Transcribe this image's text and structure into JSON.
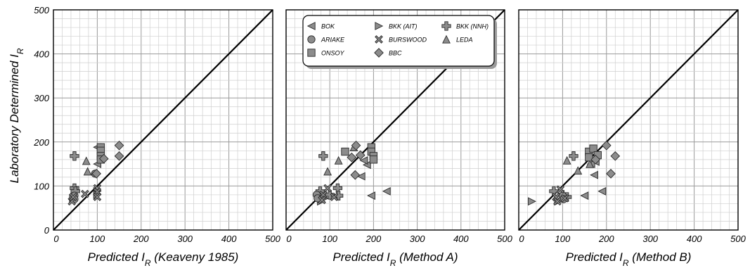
{
  "chart_data": [
    {
      "type": "scatter",
      "xlabel": "Predicted I_R (Keaveny 1985)",
      "ylabel": "Laboratory Determined I_R",
      "xlim": [
        0,
        500
      ],
      "ylim": [
        0,
        500
      ],
      "xticks": [
        "0",
        "100",
        "200",
        "300",
        "400",
        "500"
      ],
      "yticks": [
        "0",
        "100",
        "200",
        "300",
        "400",
        "500"
      ],
      "grid": true,
      "reference_line": "1:1",
      "series": [
        {
          "name": "BOK",
          "marker": "triangle-left",
          "points": [
            [
              100,
              150
            ],
            [
              100,
              188
            ]
          ]
        },
        {
          "name": "BKK (AIT)",
          "marker": "triangle-right",
          "points": [
            [
              45,
              72
            ],
            [
              100,
              80
            ],
            [
              100,
              88
            ]
          ]
        },
        {
          "name": "BKK (NNH)",
          "marker": "plus",
          "points": [
            [
              48,
              168
            ],
            [
              48,
              95
            ],
            [
              50,
              88
            ]
          ]
        },
        {
          "name": "ARIAKE",
          "marker": "circle",
          "points": [
            [
              48,
              78
            ],
            [
              48,
              70
            ],
            [
              95,
              128
            ]
          ]
        },
        {
          "name": "BURSWOOD",
          "marker": "x",
          "points": [
            [
              42,
              65
            ],
            [
              45,
              75
            ],
            [
              72,
              82
            ],
            [
              100,
              95
            ],
            [
              100,
              87
            ],
            [
              100,
              75
            ]
          ]
        },
        {
          "name": "LEDA",
          "marker": "triangle-up",
          "points": [
            [
              75,
              157
            ],
            [
              78,
              133
            ]
          ]
        },
        {
          "name": "ONSOY",
          "marker": "square",
          "points": [
            [
              108,
              188
            ],
            [
              108,
              180
            ],
            [
              108,
              168
            ],
            [
              108,
              160
            ]
          ]
        },
        {
          "name": "BBC",
          "marker": "diamond",
          "points": [
            [
              150,
              192
            ],
            [
              150,
              168
            ],
            [
              115,
              162
            ],
            [
              98,
              128
            ]
          ]
        }
      ]
    },
    {
      "type": "scatter",
      "xlabel": "Predicted I_R (Method A)",
      "xlim": [
        0,
        500
      ],
      "ylim": [
        0,
        500
      ],
      "xticks": [
        "0",
        "100",
        "200",
        "300",
        "400",
        "500"
      ],
      "grid": true,
      "reference_line": "1:1",
      "legend": {
        "position": "top",
        "entries": [
          "BOK",
          "BKK (AIT)",
          "BKK (NNH)",
          "ARIAKE",
          "BURSWOOD",
          "LEDA",
          "ONSOY",
          "BBC"
        ]
      },
      "series": [
        {
          "name": "BOK",
          "marker": "triangle-left",
          "points": [
            [
              230,
              88
            ],
            [
              195,
              78
            ],
            [
              185,
              148
            ],
            [
              172,
              122
            ],
            [
              178,
              158
            ]
          ]
        },
        {
          "name": "BKK (AIT)",
          "marker": "triangle-right",
          "points": [
            [
              80,
              65
            ],
            [
              88,
              72
            ]
          ]
        },
        {
          "name": "BKK (NNH)",
          "marker": "plus",
          "points": [
            [
              85,
              168
            ],
            [
              78,
              88
            ],
            [
              100,
              80
            ],
            [
              118,
              95
            ],
            [
              120,
              78
            ]
          ]
        },
        {
          "name": "ARIAKE",
          "marker": "circle",
          "points": [
            [
              70,
              80
            ],
            [
              72,
              72
            ]
          ]
        },
        {
          "name": "BURSWOOD",
          "marker": "x",
          "points": [
            [
              85,
              80
            ],
            [
              95,
              95
            ],
            [
              110,
              75
            ],
            [
              82,
              68
            ]
          ]
        },
        {
          "name": "LEDA",
          "marker": "triangle-up",
          "points": [
            [
              120,
              158
            ],
            [
              95,
              133
            ],
            [
              155,
              188
            ]
          ]
        },
        {
          "name": "ONSOY",
          "marker": "square",
          "points": [
            [
              135,
              178
            ],
            [
              195,
              188
            ],
            [
              195,
              178
            ],
            [
              200,
              168
            ],
            [
              200,
              160
            ]
          ]
        },
        {
          "name": "BBC",
          "marker": "diamond",
          "points": [
            [
              160,
              192
            ],
            [
              150,
              165
            ],
            [
              158,
              125
            ],
            [
              170,
              170
            ]
          ]
        }
      ]
    },
    {
      "type": "scatter",
      "xlabel": "Predicted I_R (Method B)",
      "xlim": [
        0,
        500
      ],
      "ylim": [
        0,
        500
      ],
      "xticks": [
        "0",
        "100",
        "200",
        "300",
        "400",
        "500"
      ],
      "grid": true,
      "reference_line": "1:1",
      "series": [
        {
          "name": "BOK",
          "marker": "triangle-left",
          "points": [
            [
              190,
              88
            ],
            [
              150,
              78
            ],
            [
              175,
              155
            ],
            [
              172,
              125
            ],
            [
              165,
              150
            ]
          ]
        },
        {
          "name": "BKK (AIT)",
          "marker": "triangle-right",
          "points": [
            [
              30,
              65
            ],
            [
              90,
              65
            ]
          ]
        },
        {
          "name": "BKK (NNH)",
          "marker": "plus",
          "points": [
            [
              125,
              168
            ],
            [
              80,
              88
            ],
            [
              100,
              80
            ],
            [
              110,
              75
            ]
          ]
        },
        {
          "name": "ARIAKE",
          "marker": "circle",
          "points": [
            [
              100,
              78
            ],
            [
              102,
              70
            ]
          ]
        },
        {
          "name": "BURSWOOD",
          "marker": "x",
          "points": [
            [
              85,
              75
            ],
            [
              95,
              92
            ],
            [
              105,
              72
            ],
            [
              88,
              65
            ]
          ]
        },
        {
          "name": "LEDA",
          "marker": "triangle-up",
          "points": [
            [
              110,
              158
            ],
            [
              135,
              135
            ],
            [
              162,
              150
            ]
          ]
        },
        {
          "name": "ONSOY",
          "marker": "square",
          "points": [
            [
              160,
              178
            ],
            [
              170,
              185
            ],
            [
              160,
              165
            ],
            [
              180,
              170
            ]
          ]
        },
        {
          "name": "BBC",
          "marker": "diamond",
          "points": [
            [
              200,
              192
            ],
            [
              220,
              168
            ],
            [
              210,
              128
            ],
            [
              175,
              160
            ]
          ]
        }
      ]
    }
  ]
}
